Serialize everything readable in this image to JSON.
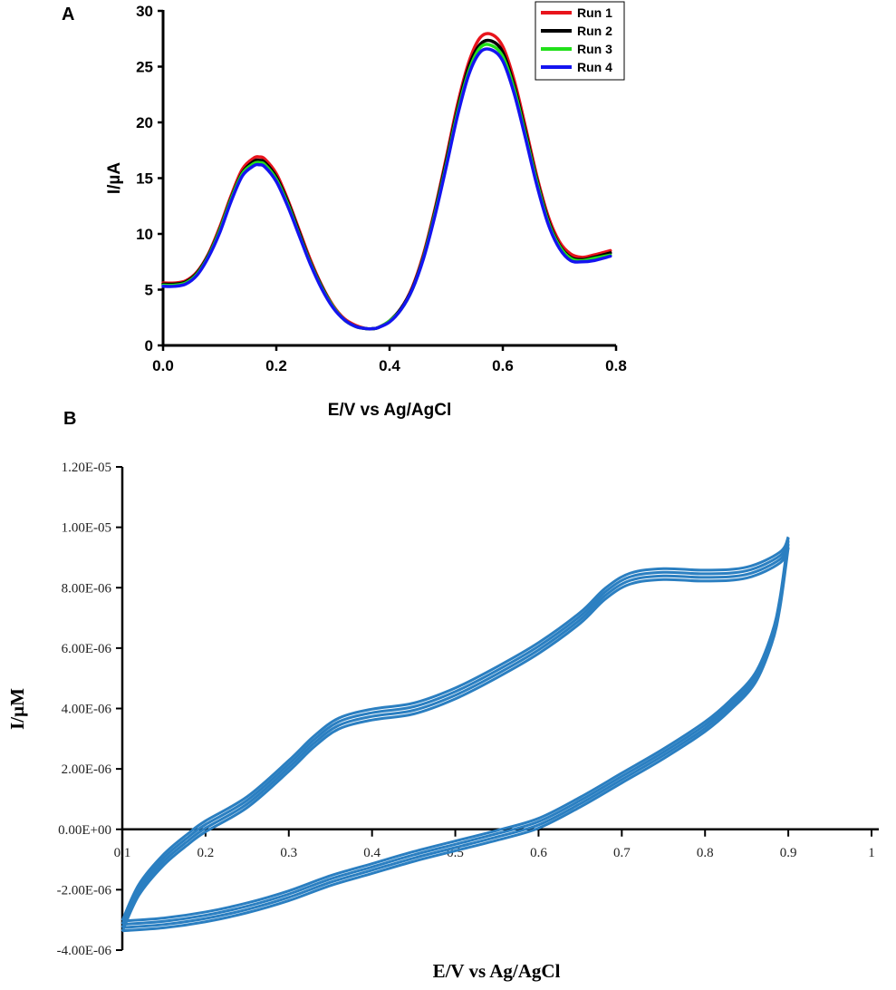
{
  "chart_data": [
    {
      "panel": "A",
      "type": "line",
      "xlabel": "E/V vs Ag/AgCl",
      "ylabel": "I/µA",
      "xlim": [
        0,
        0.8
      ],
      "ylim": [
        0,
        30
      ],
      "x_ticks": [
        "0.0",
        "0.2",
        "0.4",
        "0.6",
        "0.8"
      ],
      "y_ticks": [
        "0",
        "5",
        "10",
        "15",
        "20",
        "25",
        "30"
      ],
      "x_tick_values": [
        0,
        0.2,
        0.4,
        0.6,
        0.8
      ],
      "y_tick_values": [
        0,
        5,
        10,
        15,
        20,
        25,
        30
      ],
      "grid": false,
      "legend_position": "top-right",
      "x": [
        0,
        0.02,
        0.04,
        0.06,
        0.08,
        0.1,
        0.12,
        0.14,
        0.16,
        0.17,
        0.18,
        0.2,
        0.22,
        0.24,
        0.26,
        0.28,
        0.3,
        0.32,
        0.34,
        0.36,
        0.37,
        0.38,
        0.4,
        0.42,
        0.44,
        0.46,
        0.48,
        0.5,
        0.52,
        0.54,
        0.56,
        0.58,
        0.6,
        0.62,
        0.64,
        0.66,
        0.68,
        0.7,
        0.72,
        0.74,
        0.76,
        0.79
      ],
      "series": [
        {
          "name": "Run 1",
          "color": "#e8141c",
          "y": [
            5.6,
            5.6,
            5.8,
            6.6,
            8.2,
            10.6,
            13.4,
            15.8,
            16.8,
            16.9,
            16.7,
            15.4,
            13.1,
            10.4,
            7.7,
            5.4,
            3.6,
            2.4,
            1.8,
            1.5,
            1.5,
            1.6,
            2.2,
            3.3,
            5.2,
            8.2,
            12.2,
            16.8,
            21.6,
            25.4,
            27.6,
            27.9,
            26.8,
            23.8,
            19.6,
            15.2,
            11.6,
            9.3,
            8.2,
            7.9,
            8.1,
            8.5
          ]
        },
        {
          "name": "Run 2",
          "color": "#000000",
          "y": [
            5.5,
            5.5,
            5.7,
            6.5,
            8.1,
            10.4,
            13.2,
            15.5,
            16.5,
            16.6,
            16.4,
            15.1,
            12.9,
            10.2,
            7.5,
            5.3,
            3.5,
            2.3,
            1.7,
            1.5,
            1.5,
            1.6,
            2.2,
            3.3,
            5.1,
            8.0,
            12.0,
            16.5,
            21.2,
            25.0,
            27.0,
            27.3,
            26.3,
            23.3,
            19.2,
            14.9,
            11.3,
            9.0,
            7.9,
            7.7,
            7.9,
            8.3
          ]
        },
        {
          "name": "Run 3",
          "color": "#22e01a",
          "y": [
            5.4,
            5.4,
            5.6,
            6.4,
            8.0,
            10.3,
            13.1,
            15.4,
            16.3,
            16.4,
            16.2,
            14.9,
            12.7,
            10.0,
            7.4,
            5.2,
            3.5,
            2.3,
            1.7,
            1.5,
            1.5,
            1.6,
            2.2,
            3.2,
            5.0,
            7.9,
            11.8,
            16.2,
            20.9,
            24.6,
            26.7,
            26.9,
            25.9,
            23.0,
            18.9,
            14.7,
            11.1,
            8.9,
            7.8,
            7.6,
            7.8,
            8.1
          ]
        },
        {
          "name": "Run 4",
          "color": "#1414f0",
          "y": [
            5.3,
            5.3,
            5.5,
            6.3,
            7.9,
            10.1,
            12.9,
            15.2,
            16.1,
            16.2,
            16.0,
            14.7,
            12.5,
            9.9,
            7.3,
            5.1,
            3.4,
            2.3,
            1.7,
            1.5,
            1.5,
            1.6,
            2.1,
            3.2,
            5.0,
            7.8,
            11.6,
            16.0,
            20.6,
            24.3,
            26.3,
            26.5,
            25.5,
            22.6,
            18.6,
            14.4,
            10.9,
            8.7,
            7.6,
            7.5,
            7.6,
            8.0
          ]
        }
      ]
    },
    {
      "panel": "B",
      "type": "line",
      "xlabel": "E/V vs Ag/AgCl",
      "ylabel": "I/µM",
      "xlim": [
        0.1,
        1
      ],
      "ylim": [
        -4e-06,
        1.2e-05
      ],
      "x_ticks": [
        "0.1",
        "0.2",
        "0.3",
        "0.4",
        "0.5",
        "0.6",
        "0.7",
        "0.8",
        "0.9",
        "1"
      ],
      "y_ticks": [
        "1.20E-05",
        "1.00E-05",
        "8.00E-06",
        "6.00E-06",
        "4.00E-06",
        "2.00E-06",
        "0.00E+00",
        "-2.00E-06",
        "-4.00E-06"
      ],
      "x_tick_values": [
        0.1,
        0.2,
        0.3,
        0.4,
        0.5,
        0.6,
        0.7,
        0.8,
        0.9,
        1.0
      ],
      "y_tick_values": [
        1.2e-05,
        1e-05,
        8e-06,
        6e-06,
        4e-06,
        2e-06,
        0,
        -2e-06,
        -4e-06
      ],
      "grid": false,
      "color": "#2b7fc1",
      "cycles": 4,
      "forward_scan": {
        "x": [
          0.1,
          0.12,
          0.15,
          0.18,
          0.2,
          0.25,
          0.3,
          0.33,
          0.36,
          0.4,
          0.45,
          0.5,
          0.55,
          0.6,
          0.65,
          0.68,
          0.71,
          0.75,
          0.8,
          0.85,
          0.89,
          0.9
        ],
        "y": [
          -3.2e-06,
          -2e-06,
          -1e-06,
          -3e-07,
          1e-07,
          9e-07,
          2.1e-06,
          2.9e-06,
          3.5e-06,
          3.8e-06,
          4e-06,
          4.5e-06,
          5.2e-06,
          6e-06,
          7e-06,
          7.8e-06,
          8.3e-06,
          8.45e-06,
          8.4e-06,
          8.5e-06,
          9e-06,
          9.5e-06
        ]
      },
      "reverse_scan": {
        "x": [
          0.9,
          0.89,
          0.88,
          0.86,
          0.83,
          0.8,
          0.75,
          0.7,
          0.65,
          0.6,
          0.55,
          0.5,
          0.45,
          0.4,
          0.35,
          0.3,
          0.25,
          0.2,
          0.15,
          0.1
        ],
        "y": [
          9.5e-06,
          7.5e-06,
          6.3e-06,
          5e-06,
          4.1e-06,
          3.4e-06,
          2.5e-06,
          1.7e-06,
          9e-07,
          2e-07,
          -2e-07,
          -5.5e-07,
          -9e-07,
          -1.3e-06,
          -1.7e-06,
          -2.2e-06,
          -2.6e-06,
          -2.9e-06,
          -3.1e-06,
          -3.2e-06
        ]
      }
    }
  ]
}
